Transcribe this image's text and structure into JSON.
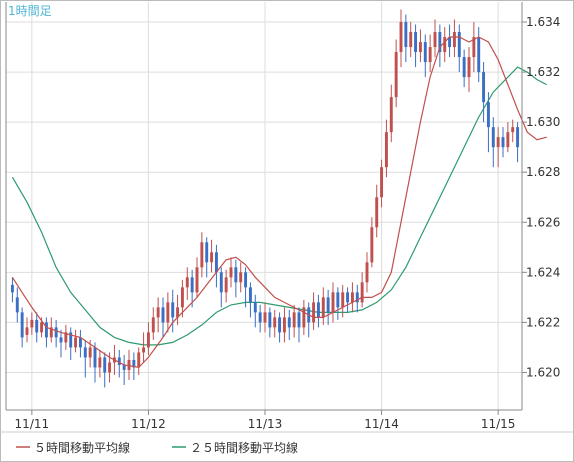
{
  "timeframe_label": "1時間足",
  "legend": [
    {
      "label": "５時間移動平均線",
      "color": "#c0504d"
    },
    {
      "label": "２５時間移動平均線",
      "color": "#2e9b6e"
    }
  ],
  "colors": {
    "up": "#c0504d",
    "down": "#3a6fc4",
    "grid": "#dddddd",
    "axis": "#888888",
    "timeframe": "#4fb6d6"
  },
  "chart_data": {
    "type": "candlestick",
    "title": "",
    "xlabel": "",
    "ylabel": "",
    "x_ticks": [
      "11/11",
      "11/12",
      "11/13",
      "11/14",
      "11/15"
    ],
    "y_ticks": [
      "1.620",
      "1.622",
      "1.624",
      "1.626",
      "1.628",
      "1.630",
      "1.632",
      "1.634"
    ],
    "ylim": [
      1.6185,
      1.6348
    ],
    "grid": true,
    "legend_position": "bottom-left",
    "series": [
      {
        "name": "５時間移動平均線",
        "type": "line",
        "points": [
          [
            0,
            1.6238
          ],
          [
            2,
            1.6232
          ],
          [
            4,
            1.6226
          ],
          [
            7,
            1.6218
          ],
          [
            10,
            1.6216
          ],
          [
            14,
            1.6214
          ],
          [
            17,
            1.621
          ],
          [
            20,
            1.6206
          ],
          [
            23,
            1.6203
          ],
          [
            26,
            1.6202
          ],
          [
            28,
            1.6206
          ],
          [
            31,
            1.6214
          ],
          [
            33,
            1.622
          ],
          [
            36,
            1.6226
          ],
          [
            38,
            1.623
          ],
          [
            40,
            1.6235
          ],
          [
            42,
            1.624
          ],
          [
            44,
            1.6245
          ],
          [
            46,
            1.6246
          ],
          [
            48,
            1.6243
          ],
          [
            50,
            1.6238
          ],
          [
            52,
            1.6234
          ],
          [
            54,
            1.623
          ],
          [
            56,
            1.6228
          ],
          [
            58,
            1.6226
          ],
          [
            60,
            1.6224
          ],
          [
            62,
            1.6222
          ],
          [
            64,
            1.6222
          ],
          [
            66,
            1.6224
          ],
          [
            68,
            1.6226
          ],
          [
            70,
            1.6228
          ],
          [
            72,
            1.623
          ],
          [
            74,
            1.623
          ],
          [
            76,
            1.6232
          ],
          [
            78,
            1.624
          ],
          [
            80,
            1.626
          ],
          [
            82,
            1.628
          ],
          [
            84,
            1.63
          ],
          [
            86,
            1.6318
          ],
          [
            88,
            1.633
          ],
          [
            90,
            1.6334
          ],
          [
            92,
            1.6334
          ],
          [
            94,
            1.6332
          ],
          [
            96,
            1.6334
          ],
          [
            98,
            1.6332
          ],
          [
            100,
            1.6325
          ],
          [
            102,
            1.6315
          ],
          [
            104,
            1.6305
          ],
          [
            106,
            1.6296
          ],
          [
            108,
            1.6293
          ],
          [
            110,
            1.6294
          ]
        ]
      },
      {
        "name": "２５時間移動平均線",
        "type": "line",
        "points": [
          [
            0,
            1.6278
          ],
          [
            3,
            1.6268
          ],
          [
            6,
            1.6256
          ],
          [
            9,
            1.6242
          ],
          [
            12,
            1.6232
          ],
          [
            15,
            1.6225
          ],
          [
            18,
            1.6218
          ],
          [
            21,
            1.6214
          ],
          [
            24,
            1.6212
          ],
          [
            27,
            1.6211
          ],
          [
            30,
            1.6211
          ],
          [
            33,
            1.6212
          ],
          [
            36,
            1.6215
          ],
          [
            39,
            1.6219
          ],
          [
            42,
            1.6224
          ],
          [
            45,
            1.6227
          ],
          [
            48,
            1.6228
          ],
          [
            51,
            1.6228
          ],
          [
            54,
            1.6227
          ],
          [
            57,
            1.6226
          ],
          [
            60,
            1.6225
          ],
          [
            63,
            1.6224
          ],
          [
            66,
            1.6224
          ],
          [
            69,
            1.6224
          ],
          [
            72,
            1.6225
          ],
          [
            75,
            1.6228
          ],
          [
            78,
            1.6233
          ],
          [
            81,
            1.6242
          ],
          [
            84,
            1.6254
          ],
          [
            87,
            1.6266
          ],
          [
            90,
            1.6278
          ],
          [
            93,
            1.629
          ],
          [
            96,
            1.6302
          ],
          [
            99,
            1.6312
          ],
          [
            102,
            1.6318
          ],
          [
            104,
            1.6322
          ],
          [
            106,
            1.632
          ],
          [
            108,
            1.6317
          ],
          [
            110,
            1.6315
          ]
        ]
      }
    ],
    "candles": [
      [
        1.6235,
        1.6232,
        1.6238,
        1.6228
      ],
      [
        1.623,
        1.6224,
        1.6234,
        1.622
      ],
      [
        1.6224,
        1.6214,
        1.6226,
        1.621
      ],
      [
        1.6215,
        1.6218,
        1.6222,
        1.6212
      ],
      [
        1.6218,
        1.6221,
        1.6224,
        1.6215
      ],
      [
        1.6221,
        1.6216,
        1.6224,
        1.6212
      ],
      [
        1.6216,
        1.622,
        1.6222,
        1.6214
      ],
      [
        1.622,
        1.6214,
        1.6222,
        1.621
      ],
      [
        1.6214,
        1.6218,
        1.6222,
        1.6212
      ],
      [
        1.6218,
        1.6214,
        1.6221,
        1.621
      ],
      [
        1.6214,
        1.6212,
        1.6217,
        1.6206
      ],
      [
        1.6212,
        1.6216,
        1.6219,
        1.6209
      ],
      [
        1.6216,
        1.621,
        1.6218,
        1.6205
      ],
      [
        1.621,
        1.6214,
        1.6217,
        1.6208
      ],
      [
        1.6214,
        1.621,
        1.6217,
        1.6206
      ],
      [
        1.621,
        1.6206,
        1.6213,
        1.6198
      ],
      [
        1.6206,
        1.621,
        1.6213,
        1.6202
      ],
      [
        1.621,
        1.6202,
        1.6212,
        1.6196
      ],
      [
        1.6202,
        1.6206,
        1.6209,
        1.6198
      ],
      [
        1.6206,
        1.62,
        1.6208,
        1.6194
      ],
      [
        1.62,
        1.6204,
        1.6208,
        1.6196
      ],
      [
        1.6204,
        1.6206,
        1.6211,
        1.6199
      ],
      [
        1.6206,
        1.6203,
        1.6209,
        1.6198
      ],
      [
        1.6203,
        1.6201,
        1.6207,
        1.6195
      ],
      [
        1.6201,
        1.6205,
        1.6209,
        1.6197
      ],
      [
        1.6205,
        1.6202,
        1.6208,
        1.6197
      ],
      [
        1.6202,
        1.6208,
        1.621,
        1.6199
      ],
      [
        1.6208,
        1.621,
        1.6216,
        1.6204
      ],
      [
        1.621,
        1.6216,
        1.622,
        1.6207
      ],
      [
        1.6216,
        1.6222,
        1.6226,
        1.6213
      ],
      [
        1.6222,
        1.6226,
        1.623,
        1.6216
      ],
      [
        1.6226,
        1.622,
        1.623,
        1.6214
      ],
      [
        1.622,
        1.6228,
        1.6232,
        1.6216
      ],
      [
        1.6228,
        1.6222,
        1.6233,
        1.6216
      ],
      [
        1.6222,
        1.6226,
        1.6231,
        1.6219
      ],
      [
        1.6226,
        1.6234,
        1.6237,
        1.6222
      ],
      [
        1.6234,
        1.6238,
        1.6242,
        1.6229
      ],
      [
        1.6238,
        1.6232,
        1.6241,
        1.6226
      ],
      [
        1.6232,
        1.6242,
        1.6246,
        1.623
      ],
      [
        1.6242,
        1.6252,
        1.6256,
        1.6238
      ],
      [
        1.6252,
        1.6244,
        1.6254,
        1.6238
      ],
      [
        1.6244,
        1.6248,
        1.6253,
        1.624
      ],
      [
        1.6248,
        1.624,
        1.6251,
        1.6234
      ],
      [
        1.624,
        1.6232,
        1.6242,
        1.6226
      ],
      [
        1.6232,
        1.6238,
        1.6241,
        1.6228
      ],
      [
        1.6238,
        1.6242,
        1.6246,
        1.6234
      ],
      [
        1.6242,
        1.6236,
        1.6245,
        1.623
      ],
      [
        1.6236,
        1.624,
        1.6244,
        1.6232
      ],
      [
        1.624,
        1.6234,
        1.6242,
        1.6226
      ],
      [
        1.6234,
        1.6228,
        1.6236,
        1.6222
      ],
      [
        1.6228,
        1.6224,
        1.6231,
        1.6218
      ],
      [
        1.6224,
        1.622,
        1.6227,
        1.6216
      ],
      [
        1.622,
        1.6224,
        1.6228,
        1.6216
      ],
      [
        1.6224,
        1.6218,
        1.6226,
        1.6214
      ],
      [
        1.6218,
        1.6222,
        1.6225,
        1.6214
      ],
      [
        1.6222,
        1.6216,
        1.6224,
        1.6212
      ],
      [
        1.6216,
        1.6222,
        1.6226,
        1.6212
      ],
      [
        1.6222,
        1.6218,
        1.6225,
        1.6213
      ],
      [
        1.6218,
        1.6224,
        1.6227,
        1.6214
      ],
      [
        1.6224,
        1.6218,
        1.6226,
        1.6212
      ],
      [
        1.6218,
        1.6226,
        1.6229,
        1.6215
      ],
      [
        1.6226,
        1.622,
        1.6228,
        1.6214
      ],
      [
        1.622,
        1.6228,
        1.6232,
        1.6217
      ],
      [
        1.6228,
        1.6222,
        1.6231,
        1.6218
      ],
      [
        1.6222,
        1.623,
        1.6234,
        1.6219
      ],
      [
        1.623,
        1.6224,
        1.6233,
        1.6219
      ],
      [
        1.6224,
        1.6232,
        1.6236,
        1.622
      ],
      [
        1.6232,
        1.6226,
        1.6234,
        1.6221
      ],
      [
        1.6226,
        1.6232,
        1.6235,
        1.6222
      ],
      [
        1.6232,
        1.6228,
        1.6234,
        1.6224
      ],
      [
        1.6228,
        1.6232,
        1.6236,
        1.6224
      ],
      [
        1.6232,
        1.6228,
        1.6235,
        1.6224
      ],
      [
        1.6228,
        1.6236,
        1.624,
        1.6226
      ],
      [
        1.6236,
        1.6244,
        1.6248,
        1.6232
      ],
      [
        1.6244,
        1.6258,
        1.6262,
        1.6242
      ],
      [
        1.6258,
        1.627,
        1.6275,
        1.6254
      ],
      [
        1.627,
        1.6282,
        1.6285,
        1.6266
      ],
      [
        1.6282,
        1.6296,
        1.6301,
        1.6278
      ],
      [
        1.6296,
        1.631,
        1.6315,
        1.6292
      ],
      [
        1.631,
        1.6328,
        1.6333,
        1.6306
      ],
      [
        1.6328,
        1.634,
        1.6345,
        1.6322
      ],
      [
        1.634,
        1.633,
        1.6343,
        1.6324
      ],
      [
        1.633,
        1.6336,
        1.634,
        1.6326
      ],
      [
        1.6336,
        1.6328,
        1.6339,
        1.6322
      ],
      [
        1.6328,
        1.6332,
        1.6337,
        1.6324
      ],
      [
        1.6332,
        1.6324,
        1.6335,
        1.6318
      ],
      [
        1.6324,
        1.633,
        1.6335,
        1.632
      ],
      [
        1.633,
        1.6336,
        1.6341,
        1.6326
      ],
      [
        1.6336,
        1.6328,
        1.6339,
        1.6322
      ],
      [
        1.6328,
        1.6334,
        1.6338,
        1.6324
      ],
      [
        1.6334,
        1.633,
        1.6339,
        1.6326
      ],
      [
        1.633,
        1.6336,
        1.6341,
        1.6326
      ],
      [
        1.6336,
        1.6326,
        1.6339,
        1.632
      ],
      [
        1.6326,
        1.6318,
        1.6329,
        1.6314
      ],
      [
        1.6318,
        1.6326,
        1.633,
        1.6312
      ],
      [
        1.6326,
        1.6334,
        1.634,
        1.632
      ],
      [
        1.6334,
        1.632,
        1.6338,
        1.6316
      ],
      [
        1.632,
        1.6308,
        1.6324,
        1.63
      ],
      [
        1.6308,
        1.6298,
        1.6312,
        1.6288
      ],
      [
        1.6298,
        1.629,
        1.6302,
        1.6282
      ],
      [
        1.629,
        1.6294,
        1.6298,
        1.6282
      ],
      [
        1.6294,
        1.629,
        1.6298,
        1.6286
      ],
      [
        1.629,
        1.6296,
        1.63,
        1.6288
      ],
      [
        1.6296,
        1.6298,
        1.6301,
        1.6292
      ],
      [
        1.6298,
        1.629,
        1.63,
        1.6284
      ]
    ]
  }
}
